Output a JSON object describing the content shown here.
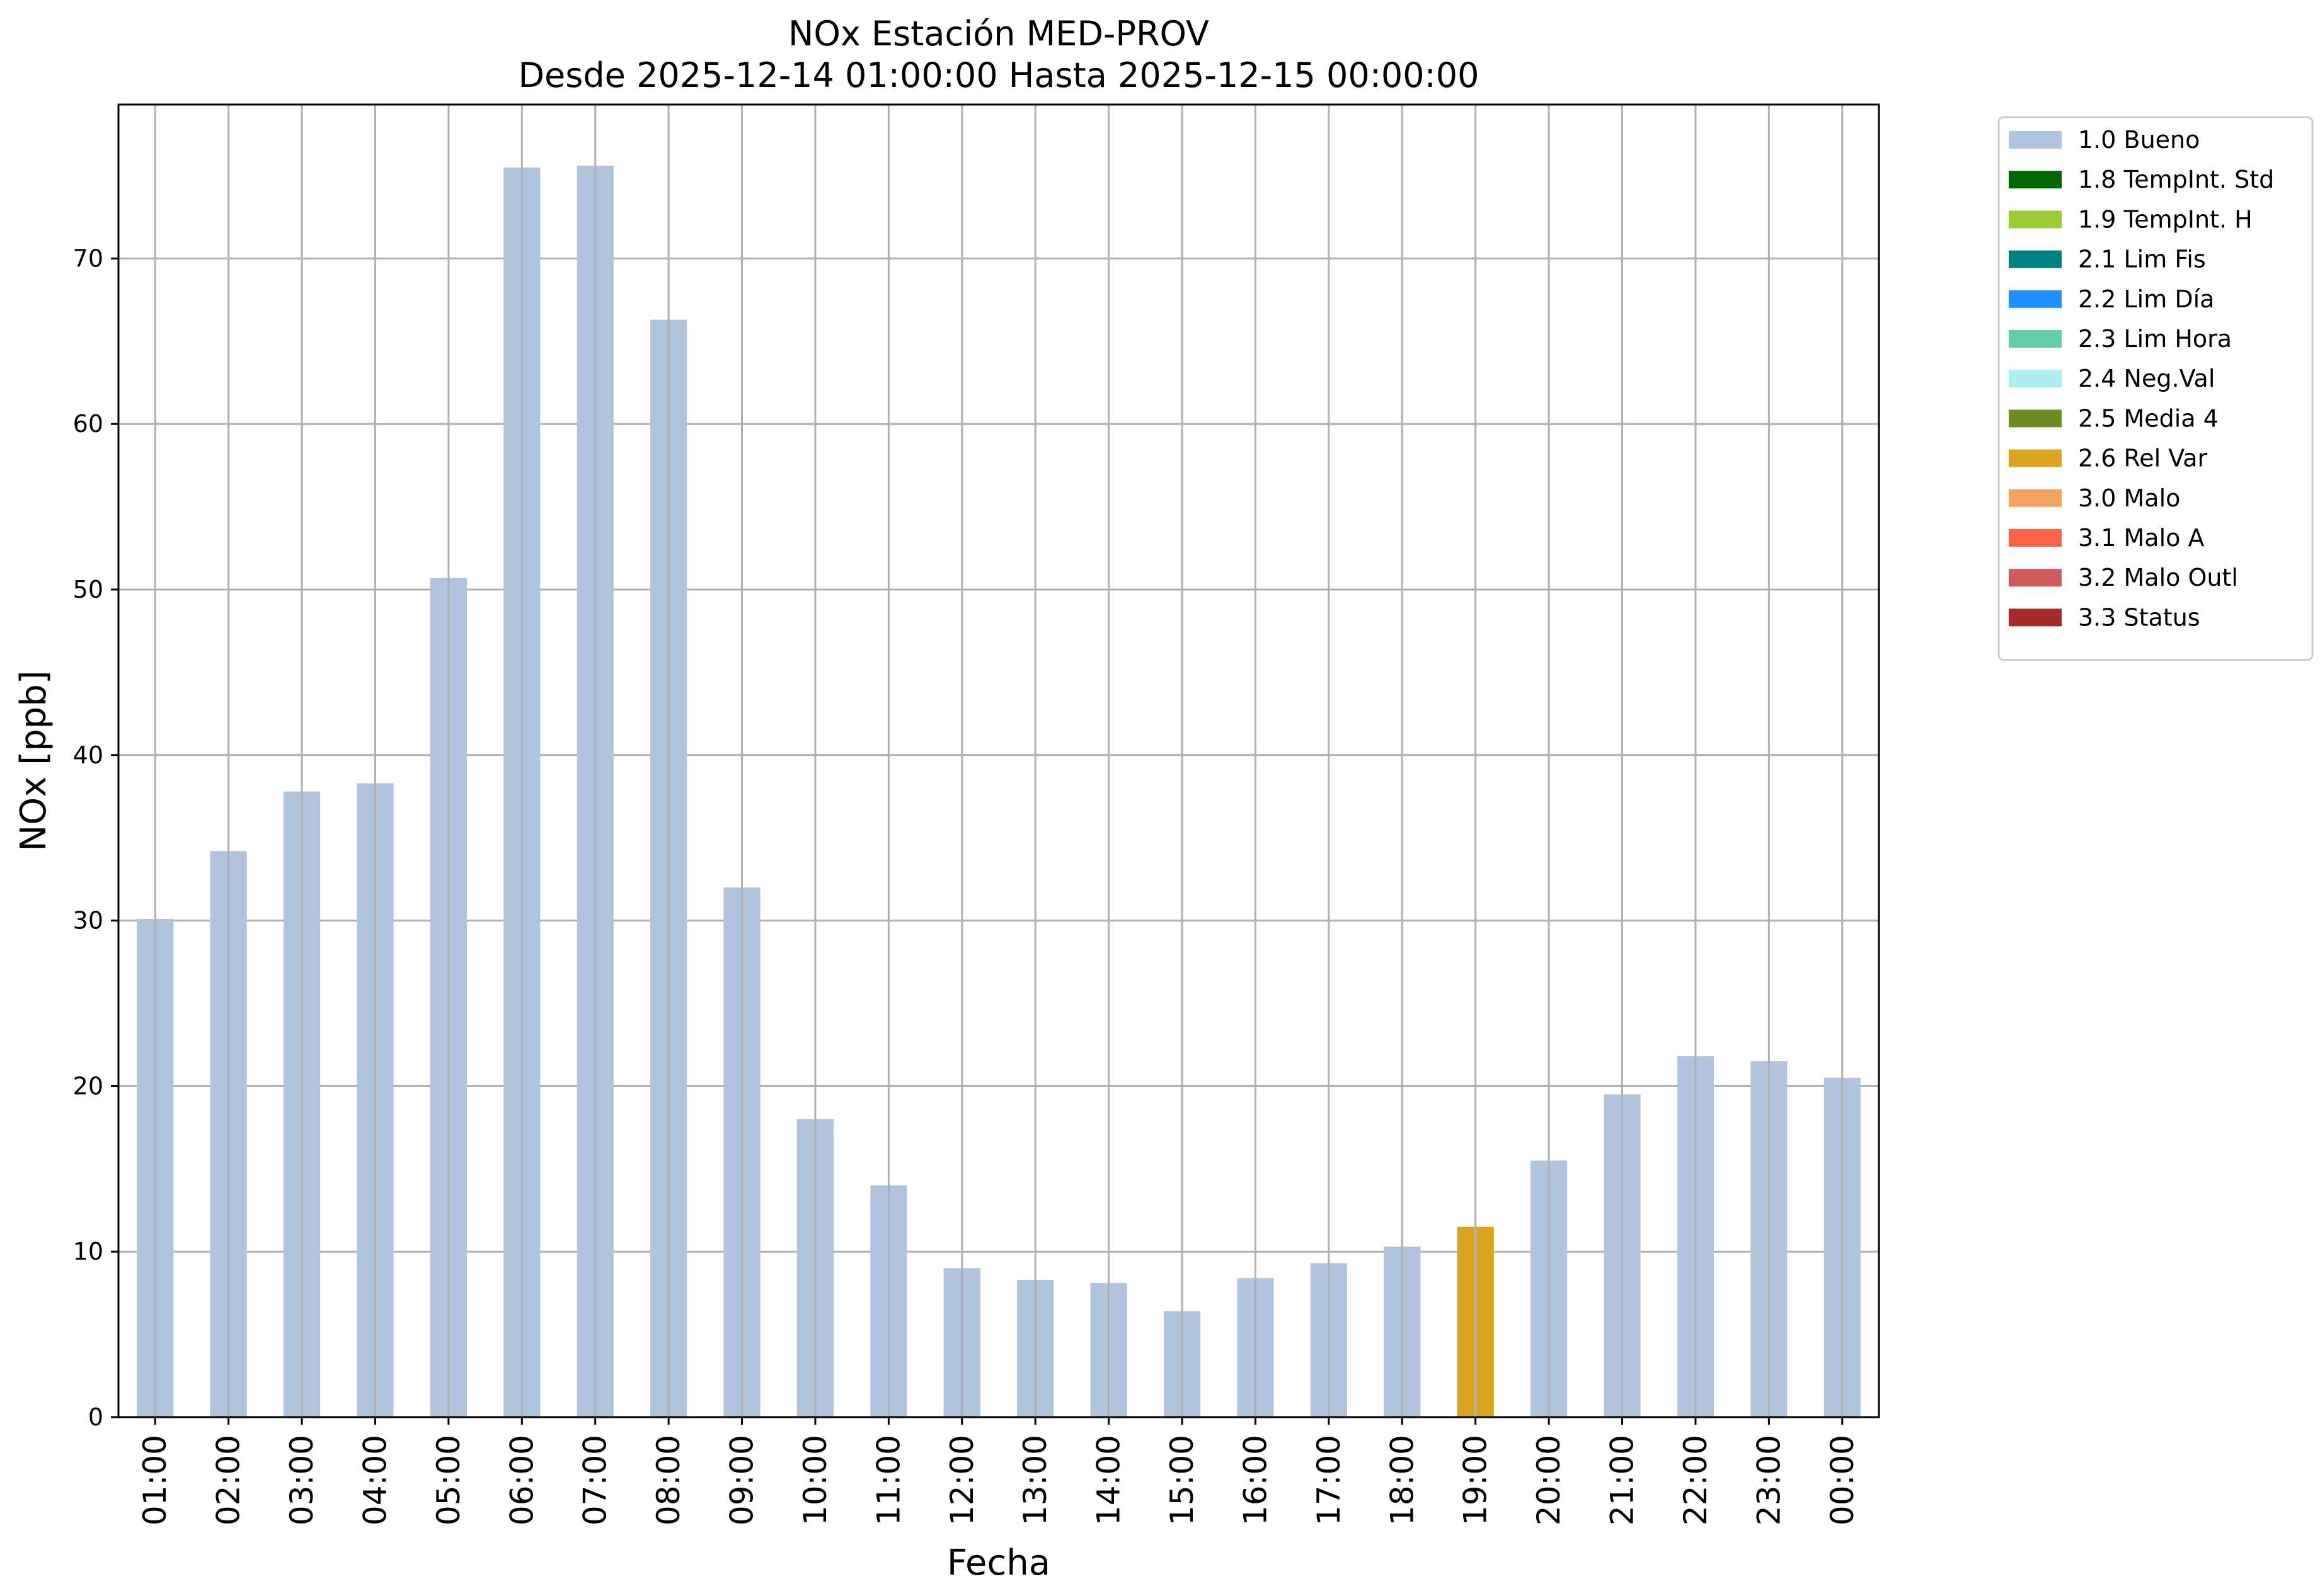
{
  "chart_data": {
    "type": "bar",
    "title": "NOx Estación MED-PROV",
    "subtitle": "Desde 2025-12-14 01:00:00 Hasta 2025-12-15 00:00:00",
    "xlabel": "Fecha",
    "ylabel": "NOx [ppb]",
    "ylim": [
      0,
      79.3
    ],
    "yticks": [
      0,
      10,
      20,
      30,
      40,
      50,
      60,
      70
    ],
    "grid": true,
    "legend_position": "outside-top-right",
    "categories": [
      "01:00",
      "02:00",
      "03:00",
      "04:00",
      "05:00",
      "06:00",
      "07:00",
      "08:00",
      "09:00",
      "10:00",
      "11:00",
      "12:00",
      "13:00",
      "14:00",
      "15:00",
      "16:00",
      "17:00",
      "18:00",
      "19:00",
      "20:00",
      "21:00",
      "22:00",
      "23:00",
      "00:00"
    ],
    "values": [
      30.1,
      34.2,
      37.8,
      38.3,
      50.7,
      75.5,
      75.6,
      66.3,
      32.0,
      18.0,
      14.0,
      9.0,
      8.3,
      8.1,
      6.4,
      8.4,
      9.3,
      10.3,
      11.5,
      15.5,
      19.5,
      21.8,
      21.5,
      20.5
    ],
    "flags": [
      "1.0 Bueno",
      "1.0 Bueno",
      "1.0 Bueno",
      "1.0 Bueno",
      "1.0 Bueno",
      "1.0 Bueno",
      "1.0 Bueno",
      "1.0 Bueno",
      "1.0 Bueno",
      "1.0 Bueno",
      "1.0 Bueno",
      "1.0 Bueno",
      "1.0 Bueno",
      "1.0 Bueno",
      "1.0 Bueno",
      "1.0 Bueno",
      "1.0 Bueno",
      "1.0 Bueno",
      "2.6 Rel Var",
      "1.0 Bueno",
      "1.0 Bueno",
      "1.0 Bueno",
      "1.0 Bueno",
      "1.0 Bueno"
    ],
    "legend": [
      {
        "label": "1.0 Bueno",
        "color": "#b0c4de"
      },
      {
        "label": "1.8 TempInt. Std",
        "color": "#006400"
      },
      {
        "label": "1.9 TempInt. H",
        "color": "#9acd32"
      },
      {
        "label": "2.1 Lim Fis",
        "color": "#008080"
      },
      {
        "label": "2.2 Lim Día",
        "color": "#1e90ff"
      },
      {
        "label": "2.3 Lim Hora",
        "color": "#66cdaa"
      },
      {
        "label": "2.4 Neg.Val",
        "color": "#afeeee"
      },
      {
        "label": "2.5 Media 4",
        "color": "#6b8e23"
      },
      {
        "label": "2.6 Rel Var",
        "color": "#daa520"
      },
      {
        "label": "3.0 Malo",
        "color": "#f4a460"
      },
      {
        "label": "3.1 Malo A",
        "color": "#ff6347"
      },
      {
        "label": "3.2 Malo Outl",
        "color": "#cd5c5c"
      },
      {
        "label": "3.3 Status",
        "color": "#a52a2a"
      }
    ]
  }
}
